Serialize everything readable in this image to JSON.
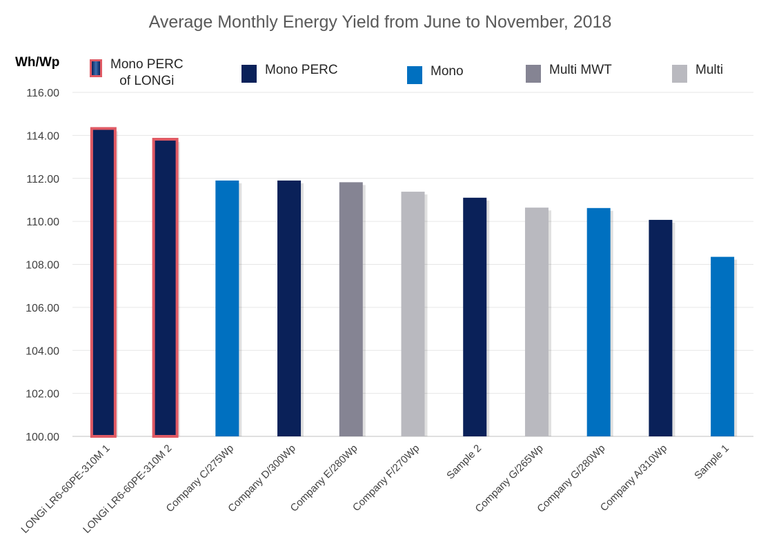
{
  "chart_data": {
    "type": "bar",
    "title": "Average Monthly Energy Yield from June to November, 2018",
    "ylabel": "Wh/Wp",
    "xlabel": "",
    "ylim": [
      100,
      116
    ],
    "yticks": [
      "100.00",
      "102.00",
      "104.00",
      "106.00",
      "108.00",
      "110.00",
      "112.00",
      "114.00",
      "116.00"
    ],
    "grid": true,
    "legend": [
      {
        "label": "Mono PERC\nof LONGi",
        "color": "#0a2159",
        "border": "#e05a64"
      },
      {
        "label": "Mono PERC",
        "color": "#0a2159"
      },
      {
        "label": "Mono",
        "color": "#0070c0"
      },
      {
        "label": "Multi MWT",
        "color": "#858493"
      },
      {
        "label": "Multi",
        "color": "#b9b9bf"
      }
    ],
    "categories": [
      "LONGi LR6-60PE-310M 1",
      "LONGi LR6-60PE-310M 2",
      "Company C/275Wp",
      "Company D/300Wp",
      "Company E/280Wp",
      "Company F/270Wp",
      "Sample 2",
      "Company G/265Wp",
      "Company G/280Wp",
      "Company A/310Wp",
      "Sample 1"
    ],
    "values": [
      114.32,
      113.82,
      111.9,
      111.9,
      111.82,
      111.38,
      111.1,
      110.64,
      110.62,
      110.07,
      108.35
    ],
    "colors": [
      "#0a2159",
      "#0a2159",
      "#0070c0",
      "#0a2159",
      "#858493",
      "#b9b9bf",
      "#0a2159",
      "#b9b9bf",
      "#0070c0",
      "#0a2159",
      "#0070c0"
    ],
    "highlight": [
      true,
      true,
      false,
      false,
      false,
      false,
      false,
      false,
      false,
      false,
      false
    ],
    "highlight_color": "#e05a64"
  }
}
